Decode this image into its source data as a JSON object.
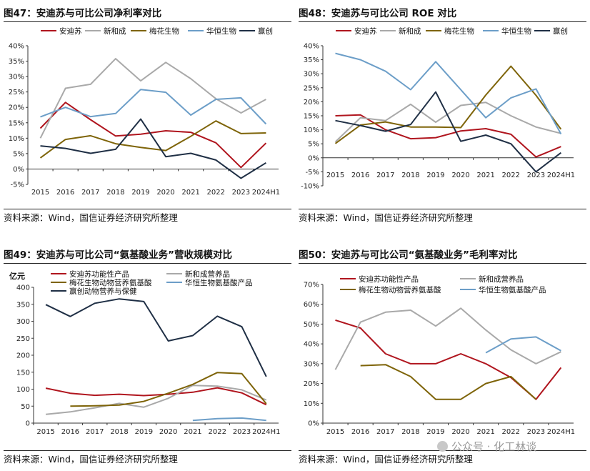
{
  "panels": [
    {
      "title": "图47：安迪苏与可比公司净利率对比",
      "source": "资料来源：Wind，国信证券经济研究所整理",
      "chart_data": {
        "type": "line",
        "x": [
          "2015",
          "2016",
          "2017",
          "2018",
          "2019",
          "2020",
          "2021",
          "2022",
          "2023",
          "2024H1"
        ],
        "ylim": [
          -5,
          40
        ],
        "yticks": [
          -5,
          0,
          5,
          10,
          15,
          20,
          25,
          30,
          35,
          40
        ],
        "ytick_suffix": "%",
        "ylabel": "",
        "legend_position": "top",
        "series": [
          {
            "name": "安迪苏",
            "color": "#b0151e",
            "values": [
              13.2,
              21.6,
              16.0,
              10.7,
              11.3,
              12.4,
              11.9,
              8.5,
              0.5,
              8.4
            ]
          },
          {
            "name": "新和成",
            "color": "#a9a9a9",
            "values": [
              10.0,
              26.2,
              27.5,
              35.8,
              28.6,
              34.6,
              29.3,
              22.8,
              18.2,
              22.6
            ]
          },
          {
            "name": "梅花生物",
            "color": "#7e6409",
            "values": [
              3.6,
              9.6,
              10.8,
              8.2,
              7.0,
              6.0,
              10.6,
              15.6,
              11.5,
              11.7
            ]
          },
          {
            "name": "华恒生物",
            "color": "#6c9ec8",
            "values": [
              16.9,
              20.0,
              17.0,
              18.0,
              25.8,
              24.9,
              17.5,
              22.6,
              23.1,
              14.6
            ]
          },
          {
            "name": "赢创",
            "color": "#1f2f45",
            "values": [
              7.5,
              6.7,
              5.1,
              6.4,
              16.2,
              4.0,
              5.1,
              2.9,
              -3.0,
              2.0
            ]
          }
        ]
      }
    },
    {
      "title": "图48：安迪苏与可比公司 ROE 对比",
      "source": "资料来源：Wind，国信证券经济研究所整理",
      "chart_data": {
        "type": "line",
        "x": [
          "2015",
          "2016",
          "2017",
          "2018",
          "2019",
          "2020",
          "2021",
          "2022",
          "2023",
          "2024H1"
        ],
        "ylim": [
          -10,
          40
        ],
        "yticks": [
          -10,
          -5,
          0,
          5,
          10,
          15,
          20,
          25,
          30,
          35,
          40
        ],
        "ytick_suffix": "%",
        "ylabel": "",
        "legend_position": "top",
        "series": [
          {
            "name": "安迪苏",
            "color": "#b0151e",
            "values": [
              15.0,
              15.3,
              10.0,
              6.8,
              7.2,
              9.6,
              10.4,
              8.4,
              0.3,
              4.0
            ]
          },
          {
            "name": "新和成",
            "color": "#a9a9a9",
            "values": [
              5.7,
              14.3,
              13.3,
              19.1,
              12.7,
              18.7,
              19.8,
              15.0,
              11.0,
              8.7
            ]
          },
          {
            "name": "梅花生物",
            "color": "#7e6409",
            "values": [
              5.1,
              11.7,
              12.8,
              11.0,
              11.0,
              10.8,
              22.4,
              32.7,
              22.3,
              10.2
            ]
          },
          {
            "name": "华恒生物",
            "color": "#6c9ec8",
            "values": [
              37.3,
              35.0,
              30.9,
              24.3,
              34.3,
              24.3,
              14.3,
              21.4,
              24.6,
              8.5
            ]
          },
          {
            "name": "赢创",
            "color": "#1f2f45",
            "values": [
              13.3,
              11.5,
              9.5,
              11.9,
              23.5,
              5.9,
              8.1,
              5.0,
              -5.0,
              1.8
            ]
          }
        ]
      }
    },
    {
      "title": "图49：安迪苏与可比公司“氨基酸业务”营收规模对比",
      "source": "资料来源：Wind，国信证券经济研究所整理",
      "chart_data": {
        "type": "line",
        "x": [
          "2015",
          "2016",
          "2017",
          "2018",
          "2019",
          "2020",
          "2021",
          "2022",
          "2023",
          "2024H1"
        ],
        "ylim": [
          0,
          400
        ],
        "yticks": [
          0,
          50,
          100,
          150,
          200,
          250,
          300,
          350,
          400
        ],
        "ytick_suffix": "",
        "ylabel": "亿元",
        "legend_position": "top",
        "series": [
          {
            "name": "安迪苏功能性产品",
            "color": "#b0151e",
            "values": [
              103,
              88,
              82,
              85,
              81,
              85,
              91,
              104,
              89,
              54
            ]
          },
          {
            "name": "新和成营养品",
            "color": "#a9a9a9",
            "values": [
              26,
              33,
              45,
              58,
              47,
              73,
              111,
              109,
              98,
              68
            ]
          },
          {
            "name": "梅花生物动物营养氨基酸",
            "color": "#7e6409",
            "values": [
              null,
              50,
              51,
              53,
              64,
              88,
              114,
              149,
              146,
              57
            ]
          },
          {
            "name": "华恒生物氨基酸产品",
            "color": "#6c9ec8",
            "values": [
              null,
              null,
              null,
              null,
              null,
              null,
              8,
              13,
              15,
              8
            ]
          },
          {
            "name": "赢创动物营养与保健",
            "color": "#1f2f45",
            "values": [
              349,
              314,
              353,
              366,
              358,
              242,
              258,
              315,
              284,
              137
            ]
          }
        ]
      }
    },
    {
      "title": "图50：安迪苏与可比公司“氨基酸业务”毛利率对比",
      "source": "资料来源：Wind，国信证券经济研究所整理",
      "chart_data": {
        "type": "line",
        "x": [
          "2015",
          "2016",
          "2017",
          "2018",
          "2019",
          "2020",
          "2021",
          "2022",
          "2023",
          "2024H1"
        ],
        "ylim": [
          0,
          70
        ],
        "yticks": [
          0,
          10,
          20,
          30,
          40,
          50,
          60,
          70
        ],
        "ytick_suffix": "%",
        "ylabel": "",
        "legend_position": "top",
        "series": [
          {
            "name": "安迪苏功能性产品",
            "color": "#b0151e",
            "values": [
              52,
              48,
              35,
              30,
              30,
              35,
              30,
              23,
              12,
              28
            ]
          },
          {
            "name": "新和成营养品",
            "color": "#a9a9a9",
            "values": [
              27,
              51,
              56,
              57,
              49,
              58,
              47,
              37,
              30,
              36
            ]
          },
          {
            "name": "梅花生物动物营养氨基酸",
            "color": "#7e6409",
            "values": [
              null,
              29,
              29.5,
              23.5,
              12,
              12,
              20,
              23.5,
              12,
              null
            ]
          },
          {
            "name": "华恒生物氨基酸产品",
            "color": "#6c9ec8",
            "values": [
              null,
              null,
              null,
              null,
              null,
              null,
              35.5,
              42.5,
              43.5,
              36.5
            ]
          }
        ]
      }
    }
  ],
  "watermark": "公众号 · 化工林谈"
}
